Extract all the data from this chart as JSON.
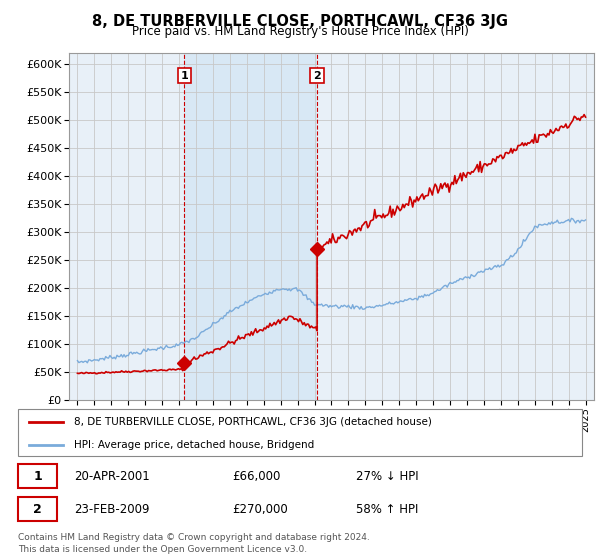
{
  "title": "8, DE TURBERVILLE CLOSE, PORTHCAWL, CF36 3JG",
  "subtitle": "Price paid vs. HM Land Registry's House Price Index (HPI)",
  "ylabel_ticks": [
    0,
    50000,
    100000,
    150000,
    200000,
    250000,
    300000,
    350000,
    400000,
    450000,
    500000,
    550000,
    600000
  ],
  "ylim": [
    0,
    620000
  ],
  "x_start_year": 1995,
  "x_end_year": 2025,
  "sale1_year": 2001.3,
  "sale1_price": 66000,
  "sale1_label": "1",
  "sale1_date": "20-APR-2001",
  "sale1_amount": "£66,000",
  "sale1_hpi": "27% ↓ HPI",
  "sale2_year": 2009.15,
  "sale2_price": 270000,
  "sale2_label": "2",
  "sale2_date": "23-FEB-2009",
  "sale2_amount": "£270,000",
  "sale2_hpi": "58% ↑ HPI",
  "red_color": "#cc0000",
  "blue_color": "#7aabdb",
  "shade_color": "#d8e8f5",
  "grid_color": "#c8c8c8",
  "background_color": "#e8f0f8",
  "legend_label_red": "8, DE TURBERVILLE CLOSE, PORTHCAWL, CF36 3JG (detached house)",
  "legend_label_blue": "HPI: Average price, detached house, Bridgend",
  "footer1": "Contains HM Land Registry data © Crown copyright and database right 2024.",
  "footer2": "This data is licensed under the Open Government Licence v3.0."
}
